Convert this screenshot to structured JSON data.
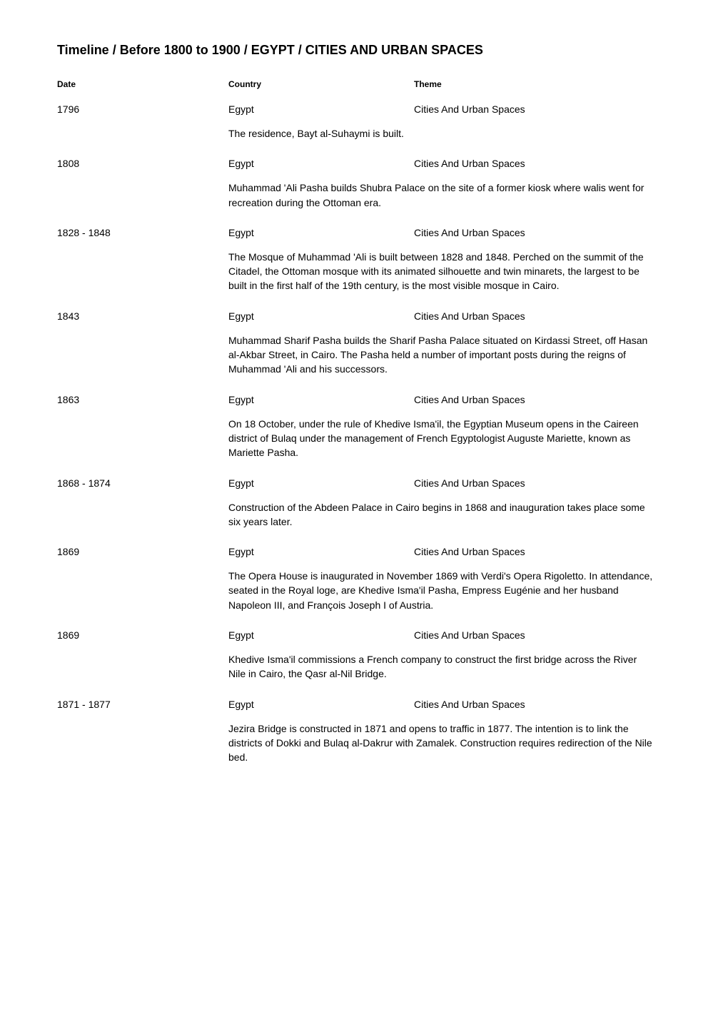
{
  "title": "Timeline / Before 1800 to 1900 / EGYPT / CITIES AND URBAN SPACES",
  "headers": {
    "date": "Date",
    "country": "Country",
    "theme": "Theme"
  },
  "entries": [
    {
      "date": "1796",
      "country": "Egypt",
      "theme": "Cities And Urban Spaces",
      "description": "The residence, Bayt al-Suhaymi is built."
    },
    {
      "date": "1808",
      "country": "Egypt",
      "theme": "Cities And Urban Spaces",
      "description": "Muhammad 'Ali Pasha builds Shubra Palace on the site of a former kiosk where walis went for recreation during the Ottoman era."
    },
    {
      "date": "1828 - 1848",
      "country": "Egypt",
      "theme": "Cities And Urban Spaces",
      "description": "The Mosque of Muhammad 'Ali is built between 1828 and 1848. Perched on the summit of the Citadel, the Ottoman mosque with its animated silhouette and twin minarets, the largest to be built in the first half of the 19th century, is the most visible mosque in Cairo."
    },
    {
      "date": "1843",
      "country": "Egypt",
      "theme": "Cities And Urban Spaces",
      "description": "Muhammad Sharif Pasha builds the Sharif Pasha Palace situated on Kirdassi Street, off Hasan al-Akbar Street, in Cairo. The Pasha held a number of important posts during the reigns of Muhammad 'Ali and his successors."
    },
    {
      "date": "1863",
      "country": "Egypt",
      "theme": "Cities And Urban Spaces",
      "description": "On 18 October, under the rule of Khedive Isma'il, the Egyptian Museum opens in the Caireen district of Bulaq under the management of French Egyptologist Auguste Mariette, known as Mariette Pasha."
    },
    {
      "date": "1868 - 1874",
      "country": "Egypt",
      "theme": "Cities And Urban Spaces",
      "description": "Construction of the Abdeen Palace in Cairo begins in 1868 and inauguration takes place some six years later."
    },
    {
      "date": "1869",
      "country": "Egypt",
      "theme": "Cities And Urban Spaces",
      "description": "The Opera House is inaugurated in November 1869 with Verdi's Opera Rigoletto. In attendance, seated in the Royal loge, are Khedive Isma'il Pasha, Empress Eugénie and her husband Napoleon III, and François Joseph I of Austria."
    },
    {
      "date": "1869",
      "country": "Egypt",
      "theme": "Cities And Urban Spaces",
      "description": "Khedive Isma'il commissions a French company to construct the first bridge across the River Nile in Cairo, the Qasr al-Nil Bridge."
    },
    {
      "date": "1871 - 1877",
      "country": "Egypt",
      "theme": "Cities And Urban Spaces",
      "description": "Jezira Bridge is constructed in 1871 and opens to traffic in 1877. The intention is to link the districts of Dokki and Bulaq al-Dakrur with Zamalek. Construction requires redirection of the Nile bed."
    }
  ]
}
